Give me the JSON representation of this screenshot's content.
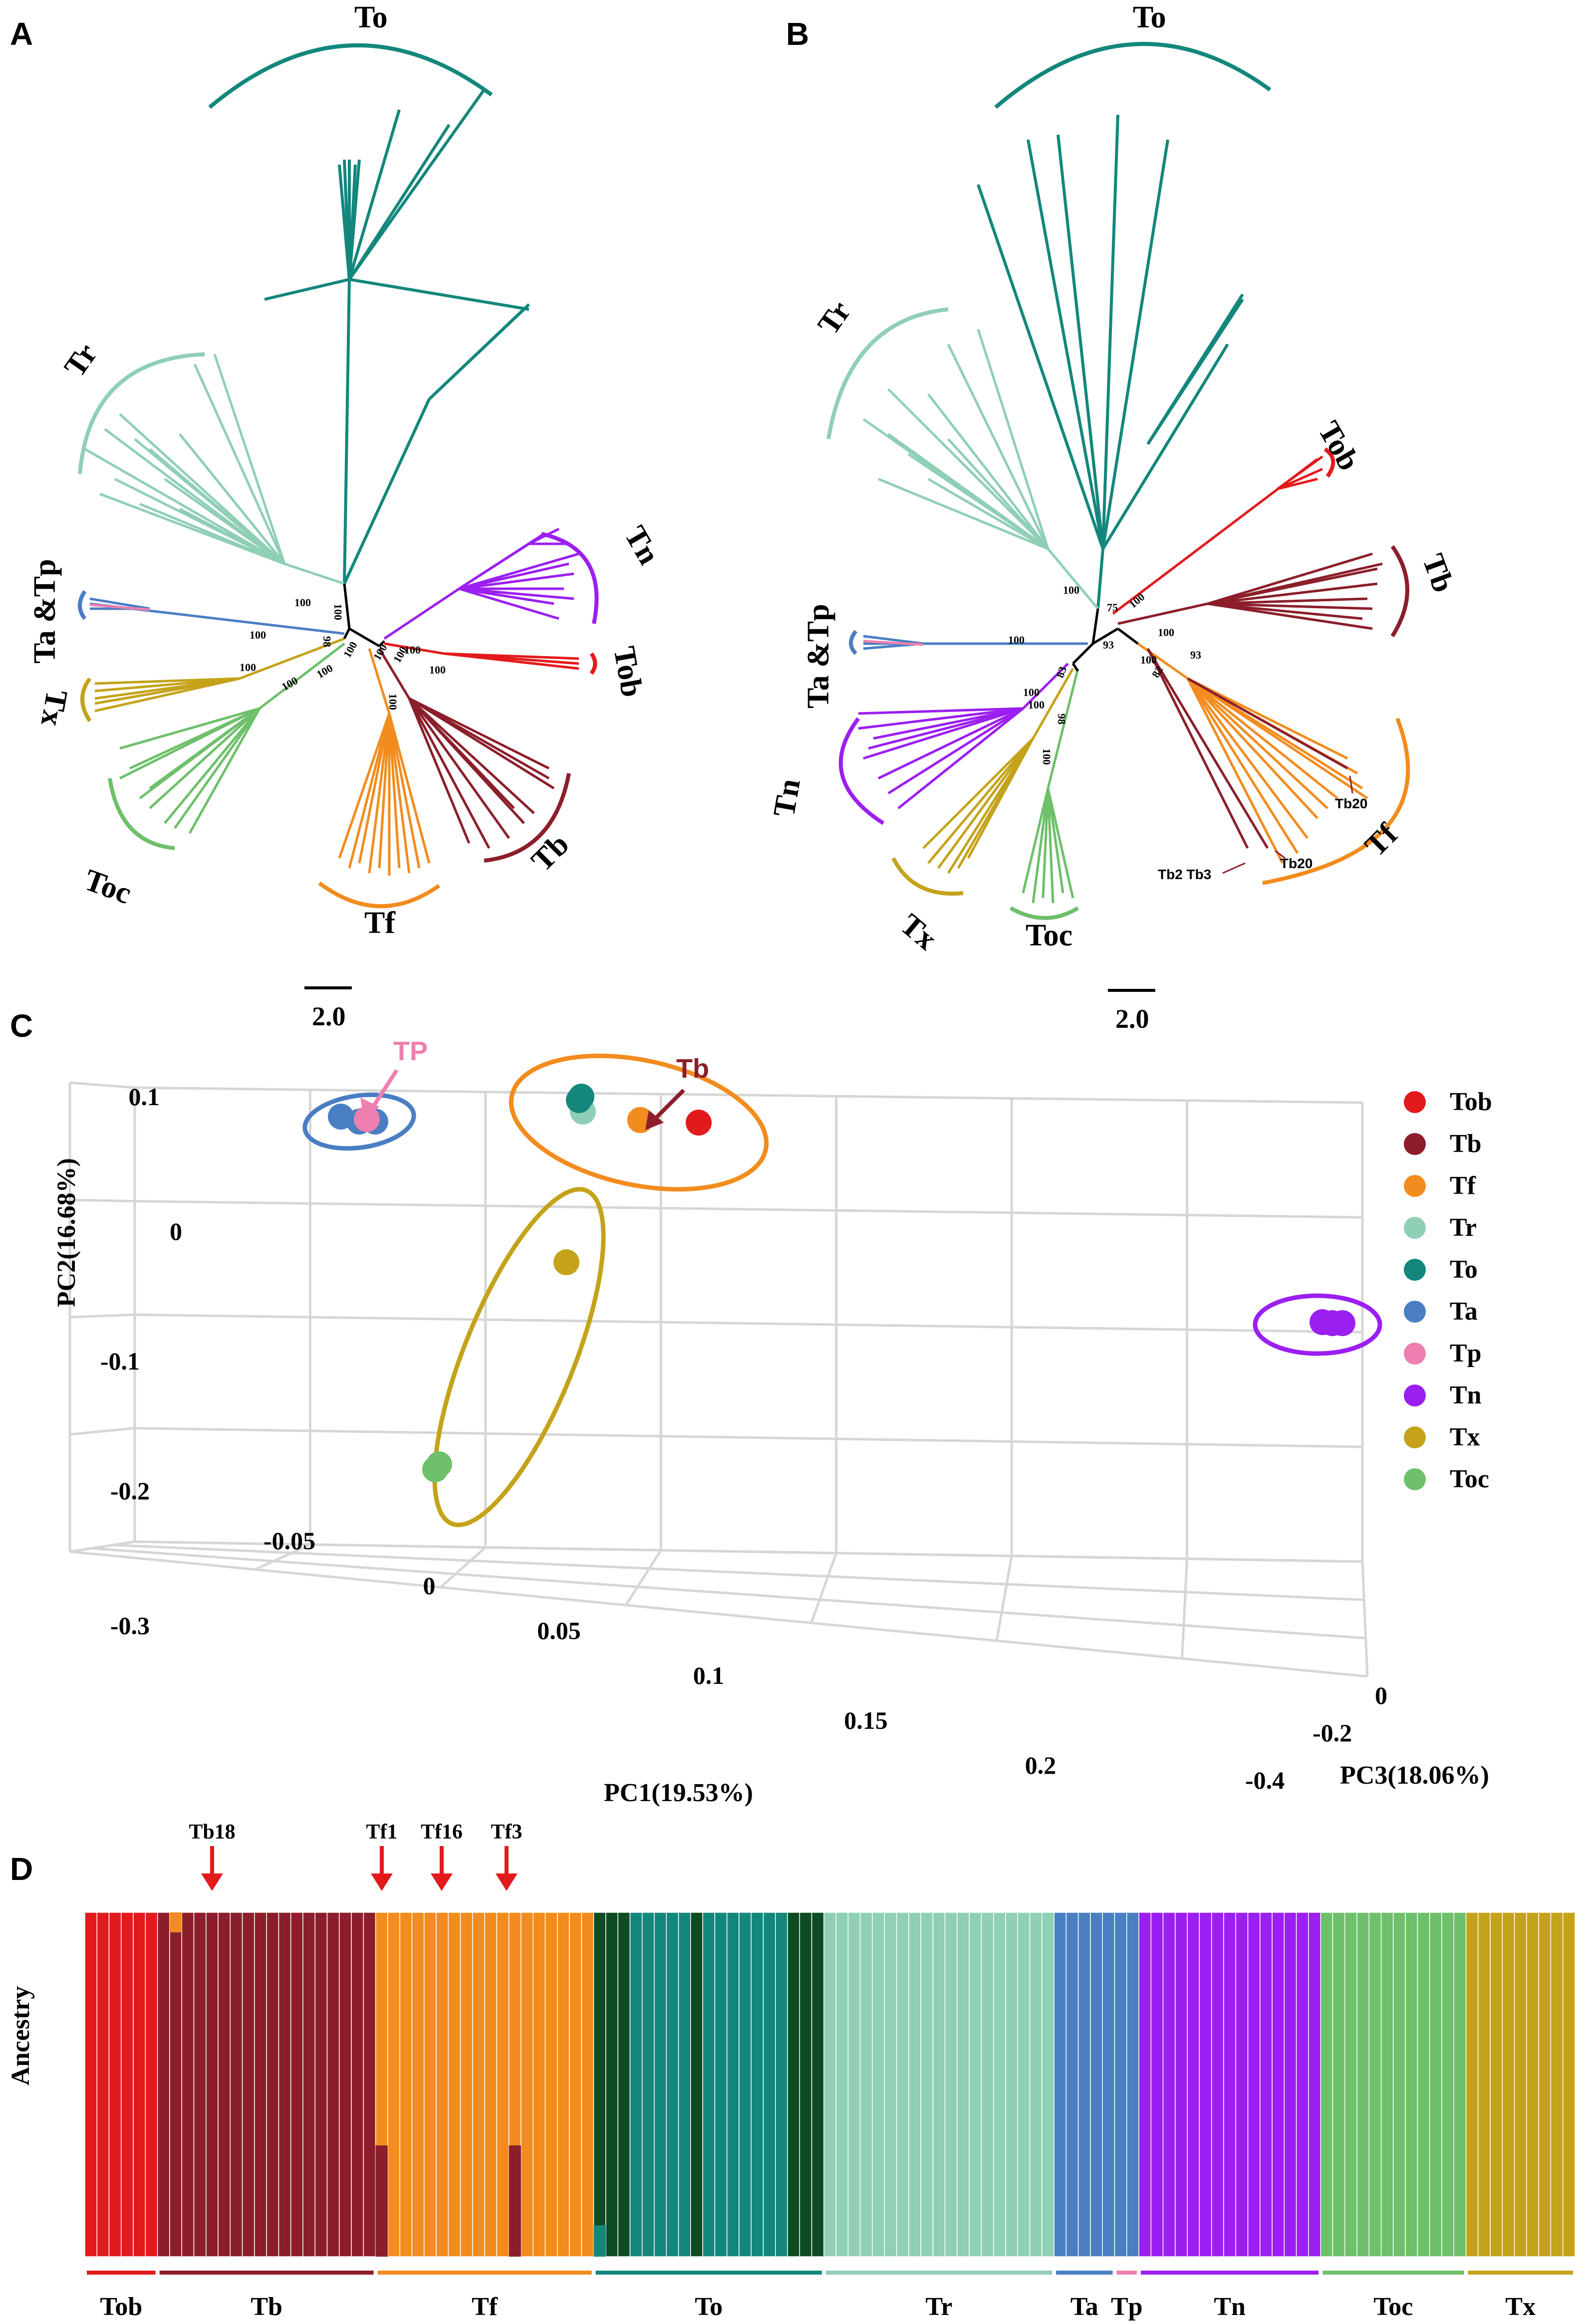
{
  "figure": {
    "panels": {
      "A": "A",
      "B": "B",
      "C": "C",
      "D": "D"
    }
  },
  "colors": {
    "Tob": "#e31a1c",
    "Tb": "#8b1e2a",
    "Tf": "#f28c1e",
    "Tr": "#8fcfb6",
    "To": "#13877c",
    "Ta": "#4a7ec2",
    "Tp": "#ee7fb0",
    "Tn": "#9b1ff0",
    "Tx": "#c4a31a",
    "Toc": "#6ec06a",
    "ToDark": "#0e4a22"
  },
  "panelA": {
    "clades": {
      "To": "To",
      "Tr": "Tr",
      "TaTp": "Ta &Tp",
      "Tx": "Tx",
      "Toc": "Toc",
      "Tf": "Tf",
      "Tb": "Tb",
      "Tob": "Tob",
      "Tn": "Tn"
    },
    "bootstrap": [
      "100",
      "100",
      "98",
      "100",
      "100",
      "100",
      "100",
      "100",
      "100",
      "100",
      "100",
      "100",
      "100"
    ],
    "scale_label": "2.0"
  },
  "panelB": {
    "clades": {
      "To": "To",
      "Tr": "Tr",
      "Tob": "Tob",
      "Tb": "Tb",
      "TaTp": "Ta &Tp",
      "Tn": "Tn",
      "Tx": "Tx",
      "Toc": "Toc",
      "Tf": "Tf"
    },
    "bootstrap": [
      "100",
      "75",
      "100",
      "100",
      "100",
      "93",
      "100",
      "82",
      "93",
      "100",
      "98",
      "83",
      "100",
      "100"
    ],
    "annotations": {
      "tb20a": "Tb20",
      "tb20b": "Tb20",
      "tb2tb3": "Tb2 Tb3"
    },
    "scale_label": "2.0"
  },
  "chart_data": {
    "type": "scatter",
    "title": "",
    "xlabel": "PC1(19.53%)",
    "ylabel": "PC2(16.68%)",
    "zlabel": "PC3(18.06%)",
    "x_ticks": [
      "-0.05",
      "0",
      "0.05",
      "0.1",
      "0.15",
      "0.2"
    ],
    "y_ticks": [
      "0.1",
      "0",
      "-0.1",
      "-0.2",
      "-0.3"
    ],
    "z_ticks": [
      "0",
      "-0.2",
      "-0.4"
    ],
    "annotations": {
      "TP": "TP",
      "Tb": "Tb"
    },
    "series": [
      {
        "name": "Tob",
        "points": [
          {
            "pc1": 0.085,
            "pc2": 0.045,
            "pc3": -0.06
          }
        ]
      },
      {
        "name": "Tb",
        "points": [
          {
            "pc1": 0.075,
            "pc2": 0.055,
            "pc3": -0.08
          }
        ]
      },
      {
        "name": "Tf",
        "points": [
          {
            "pc1": 0.075,
            "pc2": 0.055,
            "pc3": -0.08
          }
        ]
      },
      {
        "name": "Tr",
        "points": [
          {
            "pc1": 0.055,
            "pc2": 0.07,
            "pc3": -0.06
          }
        ]
      },
      {
        "name": "To",
        "points": [
          {
            "pc1": 0.055,
            "pc2": 0.08,
            "pc3": -0.06
          }
        ]
      },
      {
        "name": "Ta",
        "points": [
          {
            "pc1": -0.03,
            "pc2": 0.06,
            "pc3": -0.01
          },
          {
            "pc1": -0.025,
            "pc2": 0.058,
            "pc3": -0.01
          }
        ]
      },
      {
        "name": "Tp",
        "points": [
          {
            "pc1": -0.028,
            "pc2": 0.059,
            "pc3": -0.01
          }
        ]
      },
      {
        "name": "Tn",
        "points": [
          {
            "pc1": 0.2,
            "pc2": 0.02,
            "pc3": -0.38
          }
        ]
      },
      {
        "name": "Tx",
        "points": [
          {
            "pc1": 0.05,
            "pc2": -0.03,
            "pc3": -0.05
          }
        ]
      },
      {
        "name": "Toc",
        "points": [
          {
            "pc1": -0.01,
            "pc2": -0.18,
            "pc3": -0.02
          }
        ]
      }
    ],
    "legend": [
      "Tob",
      "Tb",
      "Tf",
      "Tr",
      "To",
      "Ta",
      "Tp",
      "Tn",
      "Tx",
      "Toc"
    ],
    "legend_position": "right"
  },
  "panelD": {
    "ylabel": "Ancestry",
    "markers": [
      "Tb18",
      "Tf1",
      "Tf16",
      "Tf3"
    ],
    "groups": [
      {
        "name": "Tob",
        "n": 6
      },
      {
        "name": "Tb",
        "n": 18
      },
      {
        "name": "Tf",
        "n": 18
      },
      {
        "name": "To",
        "n": 19
      },
      {
        "name": "Tr",
        "n": 19
      },
      {
        "name": "Ta",
        "n": 5
      },
      {
        "name": "Tp",
        "n": 2
      },
      {
        "name": "Tn",
        "n": 15
      },
      {
        "name": "Toc",
        "n": 12
      },
      {
        "name": "Tx",
        "n": 9
      }
    ]
  }
}
